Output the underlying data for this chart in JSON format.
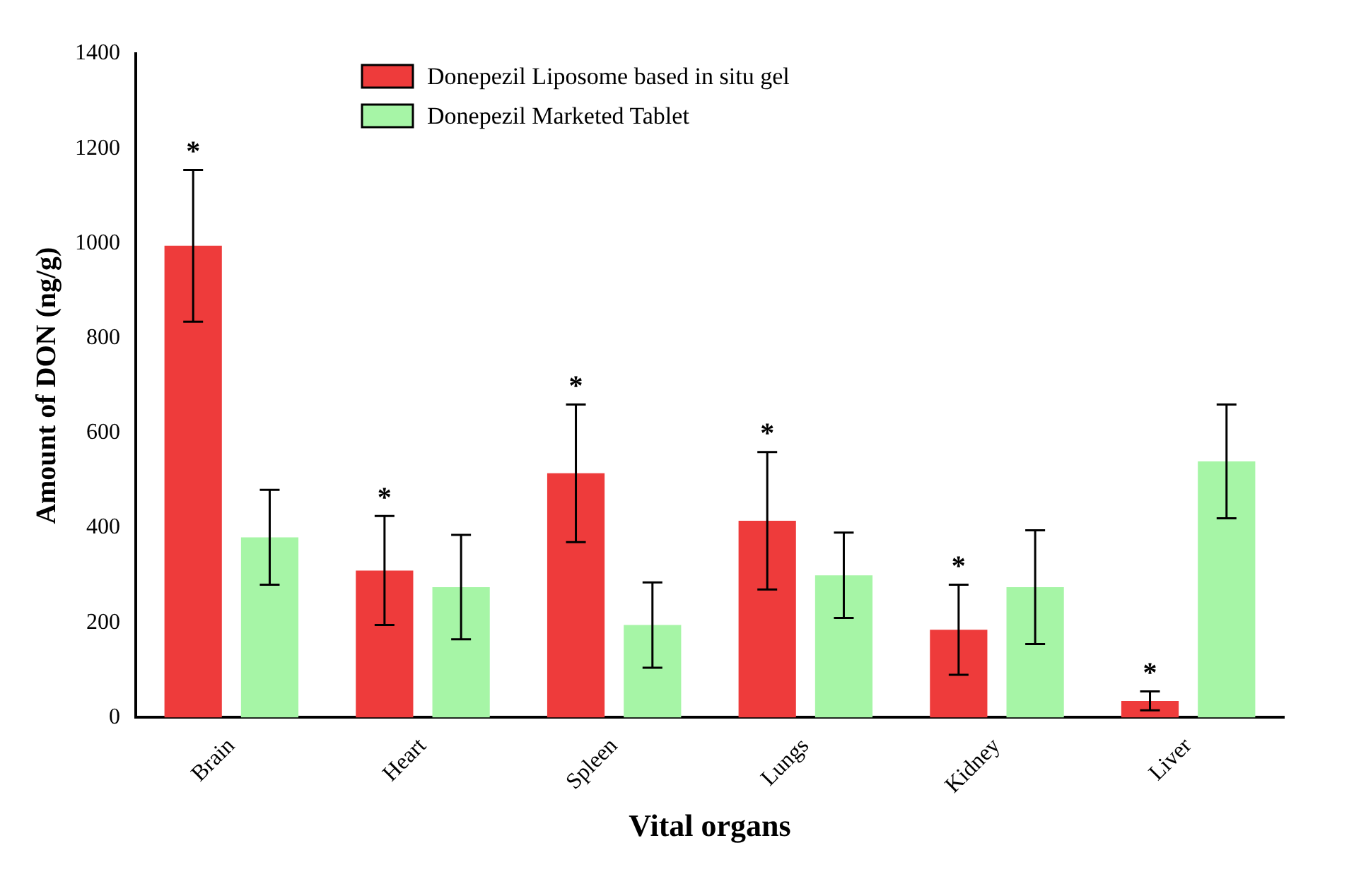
{
  "chart_data": {
    "type": "bar",
    "xlabel": "Vital organs",
    "ylabel": "Amount of DON (ng/g)",
    "categories": [
      "Brain",
      "Heart",
      "Spleen",
      "Lungs",
      "Kidney",
      "Liver"
    ],
    "series": [
      {
        "name": "Donepezil Liposome based in situ gel",
        "color": "#ee3b3b",
        "values": [
          995,
          310,
          515,
          415,
          185,
          35
        ],
        "errors": [
          160,
          115,
          145,
          145,
          95,
          20
        ]
      },
      {
        "name": "Donepezil Marketed Tablet",
        "color": "#a6f5a6",
        "values": [
          380,
          275,
          195,
          300,
          275,
          540
        ],
        "errors": [
          100,
          110,
          90,
          90,
          120,
          120
        ]
      }
    ],
    "ylim": [
      0,
      1400
    ],
    "yticks": [
      0,
      200,
      400,
      600,
      800,
      1000,
      1200,
      1400
    ],
    "grid": false,
    "legend": "top left",
    "annotations": [
      "*",
      "*",
      "*",
      "*",
      "*",
      "*"
    ]
  }
}
